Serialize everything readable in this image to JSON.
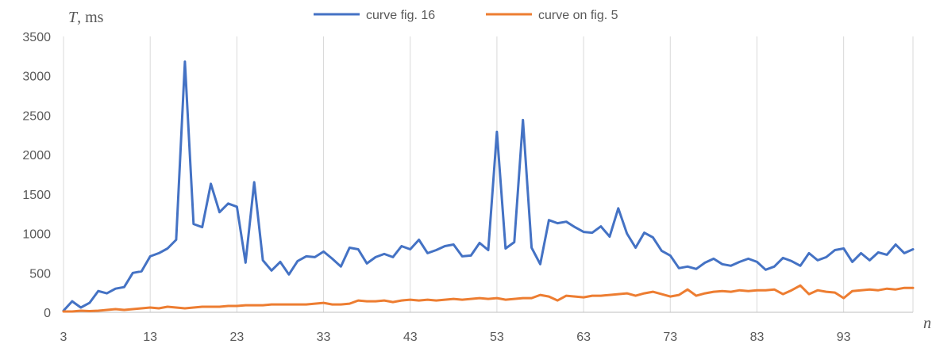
{
  "chart_data": {
    "type": "line",
    "ylabel_symbol": "T",
    "ylabel_unit": ", ms",
    "xlabel": "n",
    "xlim": [
      3,
      101
    ],
    "ylim": [
      0,
      3500
    ],
    "yticks": [
      0,
      500,
      1000,
      1500,
      2000,
      2500,
      3000,
      3500
    ],
    "xticks": [
      3,
      13,
      23,
      33,
      43,
      53,
      63,
      73,
      83,
      93
    ],
    "grid": "vertical",
    "legend_position": "top-center",
    "series": [
      {
        "name": "curve fig. 16",
        "color": "#4472C4",
        "x": [
          3,
          4,
          5,
          6,
          7,
          8,
          9,
          10,
          11,
          12,
          13,
          14,
          15,
          16,
          17,
          18,
          19,
          20,
          21,
          22,
          23,
          24,
          25,
          26,
          27,
          28,
          29,
          30,
          31,
          32,
          33,
          34,
          35,
          36,
          37,
          38,
          39,
          40,
          41,
          42,
          43,
          44,
          45,
          46,
          47,
          48,
          49,
          50,
          51,
          52,
          53,
          54,
          55,
          56,
          57,
          58,
          59,
          60,
          61,
          62,
          63,
          64,
          65,
          66,
          67,
          68,
          69,
          70,
          71,
          72,
          73,
          74,
          75,
          76,
          77,
          78,
          79,
          80,
          81,
          82,
          83,
          84,
          85,
          86,
          87,
          88,
          89,
          90,
          91,
          92,
          93,
          94,
          95,
          96,
          97,
          98,
          99,
          100,
          101
        ],
        "values": [
          20,
          140,
          60,
          120,
          270,
          240,
          300,
          320,
          500,
          520,
          710,
          750,
          810,
          920,
          3180,
          1120,
          1080,
          1630,
          1270,
          1380,
          1340,
          630,
          1650,
          660,
          530,
          640,
          480,
          650,
          710,
          700,
          770,
          680,
          580,
          820,
          800,
          620,
          700,
          740,
          700,
          840,
          800,
          920,
          750,
          790,
          840,
          860,
          710,
          720,
          880,
          790,
          2290,
          810,
          890,
          2440,
          820,
          610,
          1170,
          1130,
          1150,
          1080,
          1020,
          1010,
          1090,
          960,
          1320,
          1000,
          820,
          1010,
          950,
          780,
          720,
          560,
          580,
          550,
          630,
          680,
          610,
          590,
          640,
          680,
          640,
          540,
          580,
          690,
          650,
          590,
          750,
          660,
          700,
          790,
          810,
          640,
          750,
          660,
          760,
          730,
          860,
          750,
          800
        ]
      },
      {
        "name": "curve on fig. 5",
        "color": "#ED7D31",
        "x": [
          3,
          4,
          5,
          6,
          7,
          8,
          9,
          10,
          11,
          12,
          13,
          14,
          15,
          16,
          17,
          18,
          19,
          20,
          21,
          22,
          23,
          24,
          25,
          26,
          27,
          28,
          29,
          30,
          31,
          32,
          33,
          34,
          35,
          36,
          37,
          38,
          39,
          40,
          41,
          42,
          43,
          44,
          45,
          46,
          47,
          48,
          49,
          50,
          51,
          52,
          53,
          54,
          55,
          56,
          57,
          58,
          59,
          60,
          61,
          62,
          63,
          64,
          65,
          66,
          67,
          68,
          69,
          70,
          71,
          72,
          73,
          74,
          75,
          76,
          77,
          78,
          79,
          80,
          81,
          82,
          83,
          84,
          85,
          86,
          87,
          88,
          89,
          90,
          91,
          92,
          93,
          94,
          95,
          96,
          97,
          98,
          99,
          100,
          101
        ],
        "values": [
          10,
          10,
          20,
          15,
          20,
          30,
          40,
          30,
          40,
          50,
          60,
          50,
          70,
          60,
          50,
          60,
          70,
          70,
          70,
          80,
          80,
          90,
          90,
          90,
          100,
          100,
          100,
          100,
          100,
          110,
          120,
          100,
          100,
          110,
          150,
          140,
          140,
          150,
          130,
          150,
          160,
          150,
          160,
          150,
          160,
          170,
          160,
          170,
          180,
          170,
          180,
          160,
          170,
          180,
          180,
          220,
          200,
          150,
          210,
          200,
          190,
          210,
          210,
          220,
          230,
          240,
          210,
          240,
          260,
          230,
          200,
          220,
          290,
          210,
          240,
          260,
          270,
          260,
          280,
          270,
          280,
          280,
          290,
          230,
          280,
          340,
          230,
          280,
          260,
          250,
          180,
          270,
          280,
          290,
          280,
          300,
          290,
          310,
          310
        ]
      }
    ]
  }
}
